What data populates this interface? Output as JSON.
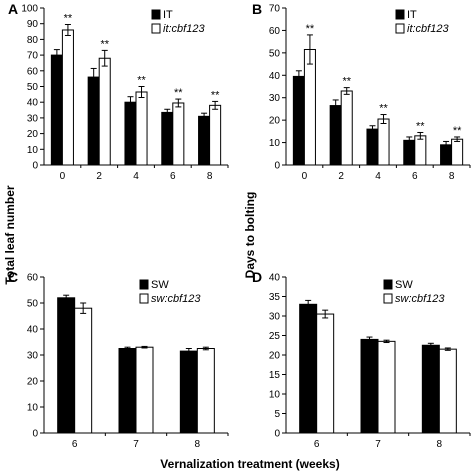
{
  "figure": {
    "shared_ylabel_left": "Total leaf number",
    "shared_ylabel_right": "Days to bolting",
    "shared_xlabel": "Vernalization treatment (weeks)",
    "colors": {
      "control": "#000000",
      "mutant": "#ffffff",
      "axis": "#000000"
    }
  },
  "chart_data": [
    {
      "panel": "A",
      "type": "bar",
      "categories": [
        "0",
        "2",
        "4",
        "6",
        "8"
      ],
      "ylim": [
        0,
        100
      ],
      "yticks": [
        0,
        10,
        20,
        30,
        40,
        50,
        60,
        70,
        80,
        90,
        100
      ],
      "legend": {
        "position": "top-right",
        "entries": [
          "IT",
          "it:cbf123"
        ]
      },
      "series": [
        {
          "name": "IT",
          "values": [
            70,
            56,
            40,
            33.5,
            31
          ],
          "errors": [
            3.5,
            5.5,
            3.5,
            2,
            2
          ]
        },
        {
          "name": "it:cbf123",
          "values": [
            86,
            68,
            46.5,
            39.5,
            38
          ],
          "errors": [
            3.5,
            5,
            3.5,
            2.5,
            2.5
          ]
        }
      ],
      "annotations": [
        "**",
        "**",
        "**",
        "**",
        "**"
      ]
    },
    {
      "panel": "B",
      "type": "bar",
      "categories": [
        "0",
        "2",
        "4",
        "6",
        "8"
      ],
      "ylim": [
        0,
        70
      ],
      "yticks": [
        0,
        10,
        20,
        30,
        40,
        50,
        60,
        70
      ],
      "legend": {
        "position": "top-right",
        "entries": [
          "IT",
          "it:cbf123"
        ]
      },
      "series": [
        {
          "name": "IT",
          "values": [
            39.5,
            26.5,
            16,
            11,
            9
          ],
          "errors": [
            2.5,
            2.5,
            1.5,
            1.5,
            1.5
          ]
        },
        {
          "name": "it:cbf123",
          "values": [
            51.5,
            33,
            20.5,
            13,
            11.5
          ],
          "errors": [
            6.5,
            1.5,
            2,
            1.5,
            1
          ]
        }
      ],
      "annotations": [
        "**",
        "**",
        "**",
        "**",
        "**"
      ]
    },
    {
      "panel": "C",
      "type": "bar",
      "categories": [
        "6",
        "7",
        "8"
      ],
      "ylim": [
        0,
        60
      ],
      "yticks": [
        0,
        10,
        20,
        30,
        40,
        50,
        60
      ],
      "legend": {
        "position": "top-right",
        "entries": [
          "SW",
          "sw:cbf123"
        ]
      },
      "series": [
        {
          "name": "SW",
          "values": [
            52,
            32.5,
            31.5
          ],
          "errors": [
            1,
            0.5,
            1
          ]
        },
        {
          "name": "sw:cbf123",
          "values": [
            48,
            33,
            32.5
          ],
          "errors": [
            2,
            0.3,
            0.5
          ]
        }
      ],
      "annotations": []
    },
    {
      "panel": "D",
      "type": "bar",
      "categories": [
        "6",
        "7",
        "8"
      ],
      "ylim": [
        0,
        40
      ],
      "yticks": [
        0,
        5,
        10,
        15,
        20,
        25,
        30,
        35,
        40
      ],
      "legend": {
        "position": "top-right",
        "entries": [
          "SW",
          "sw:cbf123"
        ]
      },
      "series": [
        {
          "name": "SW",
          "values": [
            33,
            24,
            22.5
          ],
          "errors": [
            1,
            0.6,
            0.5
          ]
        },
        {
          "name": "sw:cbf123",
          "values": [
            30.5,
            23.5,
            21.5
          ],
          "errors": [
            1,
            0.3,
            0.3
          ]
        }
      ],
      "annotations": []
    }
  ]
}
